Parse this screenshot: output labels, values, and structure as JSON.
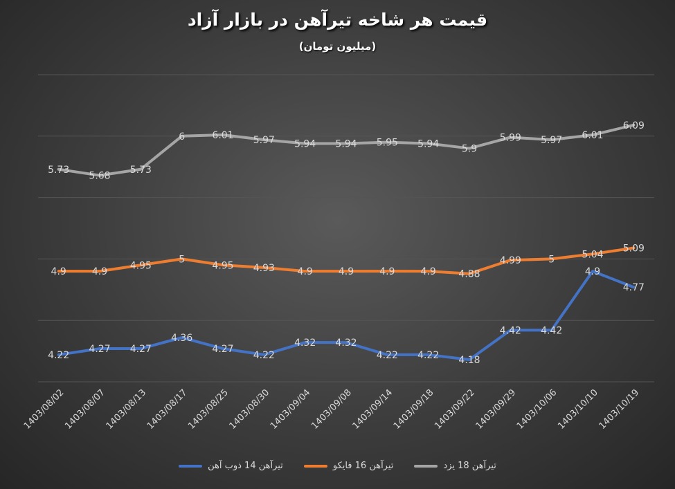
{
  "chart_data": {
    "type": "line",
    "title": "قیمت هر شاخه تیرآهن در بازار آزاد",
    "subtitle": "(میلیون تومان)",
    "categories": [
      "1403/08/02",
      "1403/08/07",
      "1403/08/13",
      "1403/08/17",
      "1403/08/25",
      "1403/08/30",
      "1403/09/04",
      "1403/09/08",
      "1403/09/14",
      "1403/09/18",
      "1403/09/22",
      "1403/09/29",
      "1403/10/06",
      "1403/10/10",
      "1403/10/19"
    ],
    "series": [
      {
        "name": "تیرآهن 14 ذوب آهن",
        "color": "#4472c4",
        "values": [
          4.22,
          4.27,
          4.27,
          4.36,
          4.27,
          4.22,
          4.32,
          4.32,
          4.22,
          4.22,
          4.18,
          4.42,
          4.42,
          4.9,
          4.77
        ]
      },
      {
        "name": "تیرآهن 16 فایکو",
        "color": "#ed7d31",
        "values": [
          4.9,
          4.9,
          4.95,
          5,
          4.95,
          4.93,
          4.9,
          4.9,
          4.9,
          4.9,
          4.88,
          4.99,
          5,
          5.04,
          5.09
        ]
      },
      {
        "name": "تیرآهن 18 یزد",
        "color": "#a5a5a5",
        "values": [
          5.73,
          5.68,
          5.73,
          6,
          6.01,
          5.97,
          5.94,
          5.94,
          5.95,
          5.94,
          5.9,
          5.99,
          5.97,
          6.01,
          6.09
        ]
      }
    ],
    "ylim": [
      4,
      6.5
    ],
    "grid": true,
    "legend_position": "bottom"
  }
}
